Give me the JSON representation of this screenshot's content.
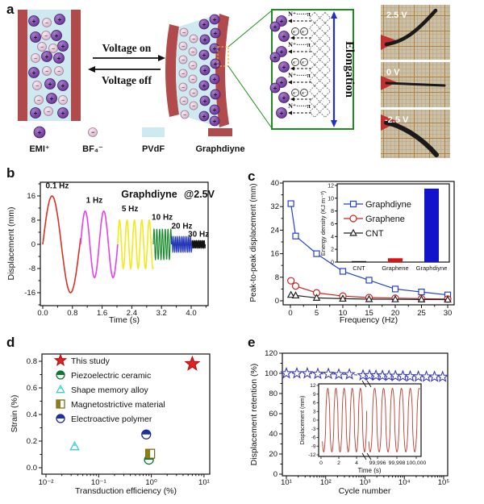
{
  "panels": {
    "a": "a",
    "b": "b",
    "c": "c",
    "d": "d",
    "e": "e"
  },
  "panel_a": {
    "voltage_on": "Voltage on",
    "voltage_off": "Voltage off",
    "elongation_label": "Elongation",
    "n_pi_label": "N⁺·····π",
    "electron_label": "e⁻",
    "legend": [
      {
        "name": "EMI⁺",
        "swatch": "purple-cation"
      },
      {
        "name": "BF₄⁻",
        "swatch": "pink-anion"
      },
      {
        "name": "PVdF",
        "swatch": "#cfe9f0"
      },
      {
        "name": "Graphdiyne",
        "swatch": "#b04a4b"
      }
    ],
    "photos": [
      {
        "label": "2.5 V",
        "bend": "up"
      },
      {
        "label": "0 V",
        "bend": "straight"
      },
      {
        "label": "-2.5 V",
        "bend": "down"
      }
    ]
  },
  "chart_data": [
    {
      "panel": "b",
      "type": "line",
      "title_red": "Graphdiyne",
      "title_black": "@2.5V",
      "xlabel": "Time (s)",
      "ylabel": "Displacement (mm)",
      "xlim": [
        0,
        4.45
      ],
      "ylim": [
        -20.5,
        20.5
      ],
      "xticks": [
        "0.0",
        "0.8",
        "1.6",
        "2.4",
        "3.2",
        "4.0"
      ],
      "yticks": [
        16,
        8,
        0,
        -8,
        -16
      ],
      "segments": [
        {
          "label": "0.1 Hz",
          "color": "#d93025",
          "t0": 0.0,
          "t1": 1.02,
          "cycles": 1.02,
          "amplitude": 16,
          "label_x": 0.39,
          "label_y": 18.6
        },
        {
          "label": "1 Hz",
          "color": "#e442e4",
          "t0": 1.02,
          "t1": 2.02,
          "cycles": 2,
          "amplitude": 11,
          "label_x": 1.39,
          "label_y": 13.8
        },
        {
          "label": "5 Hz",
          "color": "#f2ea1a",
          "t0": 2.02,
          "t1": 2.98,
          "cycles": 4.8,
          "amplitude": 8,
          "label_x": 2.35,
          "label_y": 11.0
        },
        {
          "label": "10 Hz",
          "color": "#1a8c2f",
          "t0": 2.98,
          "t1": 3.47,
          "cycles": 6.5,
          "amplitude": 5,
          "label_x": 3.22,
          "label_y": 8.1
        },
        {
          "label": "20 Hz",
          "color": "#2438b8",
          "t0": 3.47,
          "t1": 4.02,
          "cycles": 11,
          "amplitude": 2.5,
          "label_x": 3.75,
          "label_y": 5.2
        },
        {
          "label": "30 Hz",
          "color": "#111111",
          "t0": 4.02,
          "t1": 4.38,
          "cycles": 10,
          "amplitude": 1.2,
          "label_x": 4.2,
          "label_y": 2.6
        }
      ]
    },
    {
      "panel": "c",
      "type": "line-scatter",
      "xlabel": "Frequency (Hz)",
      "ylabel": "Peak-to-peak displacement (mm)",
      "xlim": [
        -1.4,
        31.2
      ],
      "ylim": [
        -1.4,
        40.5
      ],
      "xticks": [
        0,
        5,
        10,
        15,
        20,
        25,
        30
      ],
      "yticks": [
        0,
        8,
        16,
        24,
        32,
        40
      ],
      "x": [
        0.1,
        1,
        5,
        10,
        15,
        20,
        25,
        30
      ],
      "series": [
        {
          "name": "Graphdiyne",
          "marker": "square",
          "color": "#2541c8",
          "values": [
            33,
            22,
            16,
            10,
            7,
            4,
            3,
            2
          ]
        },
        {
          "name": "Graphene",
          "marker": "circle",
          "color": "#cc2222",
          "values": [
            6.8,
            5,
            2.7,
            1.6,
            1.1,
            0.9,
            0.7,
            0.6
          ]
        },
        {
          "name": "CNT",
          "marker": "triangle",
          "color": "#222222",
          "values": [
            2,
            1.8,
            1,
            0.7,
            0.55,
            0.5,
            0.45,
            0.4
          ]
        }
      ],
      "inset": {
        "type": "bar",
        "ylabel": "Energy density (KJ m⁻³)",
        "categories": [
          "CNT",
          "Graphene",
          "Graphdiyne"
        ],
        "values": [
          0.15,
          0.6,
          11.5
        ],
        "colors": [
          "#111111",
          "#e01111",
          "#1313cc"
        ],
        "yticks": [
          0,
          2,
          4,
          6,
          8,
          10,
          12
        ],
        "ylim": [
          0,
          12
        ]
      }
    },
    {
      "panel": "d",
      "type": "scatter",
      "xlabel": "Transduction efficiency (%)",
      "ylabel": "Strain (%)",
      "xscale": "log",
      "xlim": [
        0.0084,
        12.8
      ],
      "ylim": [
        -0.048,
        0.855
      ],
      "xticks": [
        0.01,
        0.1,
        1,
        10
      ],
      "xtick_labels": [
        "10⁻²",
        "10⁻¹",
        "10⁰",
        "10¹"
      ],
      "yticks": [
        "0.0",
        "0.2",
        "0.4",
        "0.6",
        "0.8"
      ],
      "points": [
        {
          "name": "This study",
          "marker": "star",
          "fill": "full",
          "color": "#e02222",
          "edge": "#b01010",
          "x": 6,
          "y": 0.78
        },
        {
          "name": "Piezoelectric ceramic",
          "marker": "circle",
          "fill": "half-top",
          "color": "#0a7a35",
          "edge": "#0a6a2f",
          "x": 0.9,
          "y": 0.06
        },
        {
          "name": "Shape memory alloy",
          "marker": "triangle",
          "fill": "half-top",
          "color": "#55e6e6",
          "edge": "#35c6c6",
          "x": 0.035,
          "y": 0.16
        },
        {
          "name": "Magnetostrictive material",
          "marker": "square",
          "fill": "half-left",
          "color": "#8a7d1a",
          "edge": "#6f6410",
          "x": 0.95,
          "y": 0.105
        },
        {
          "name": "Electroactive polymer",
          "marker": "circle",
          "fill": "half-top",
          "color": "#1a2fa8",
          "edge": "#14237f",
          "x": 0.8,
          "y": 0.25
        }
      ]
    },
    {
      "panel": "e",
      "type": "scatter-line",
      "xlabel": "Cycle number",
      "ylabel": "Displacement retention (%)",
      "xscale": "log",
      "xlim": [
        10,
        100000
      ],
      "ylim": [
        -1.6,
        120
      ],
      "xticks": [
        10,
        100,
        1000,
        10000,
        100000
      ],
      "xtick_labels": [
        "10¹",
        "10²",
        "10³",
        "10⁴",
        "10⁵"
      ],
      "yticks": [
        0,
        20,
        40,
        60,
        80,
        100,
        120
      ],
      "marker_color": "#3a3ab8",
      "cycles": [
        10,
        18.5,
        34,
        63,
        117,
        215,
        400,
        890,
        1300,
        1900,
        2780,
        4060,
        5940,
        9150,
        14100,
        22700,
        36400,
        58500,
        94000
      ],
      "retention": [
        100,
        100,
        100,
        99.5,
        99.5,
        99,
        99,
        98,
        98,
        97.8,
        97.6,
        97.5,
        97.4,
        97.2,
        97,
        96.8,
        96.7,
        96.6,
        96.5
      ],
      "inset": {
        "type": "line",
        "xlabel": "Time (s)",
        "ylabel": "Displacement (mm)",
        "yticks": [
          12,
          9,
          6,
          3,
          0,
          -3,
          -6,
          -9,
          -12
        ],
        "left_xticks": [
          "0",
          "2",
          "4"
        ],
        "right_xticks": [
          "99,996",
          "99,998",
          "100,000"
        ],
        "amplitude": 11,
        "period_s": 0.92,
        "color": "#c0392b"
      }
    }
  ]
}
